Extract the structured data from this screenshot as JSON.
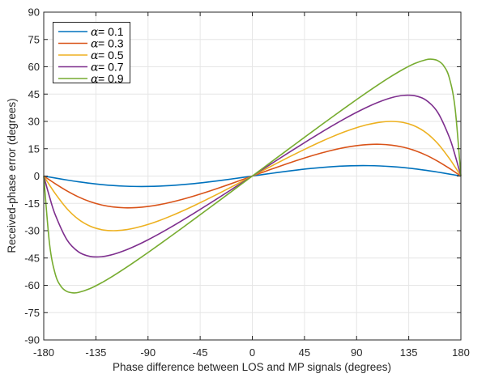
{
  "chart_data": {
    "type": "line",
    "title": "",
    "xlabel": "Phase difference between LOS and MP signals (degrees)",
    "ylabel": "Received-phase error (degrees)",
    "xlim": [
      -180,
      180
    ],
    "ylim": [
      -90,
      90
    ],
    "xticks": [
      "-180",
      "-135",
      "-90",
      "-45",
      "0",
      "45",
      "90",
      "135",
      "180"
    ],
    "yticks": [
      "90",
      "75",
      "60",
      "45",
      "30",
      "15",
      "0",
      "-15",
      "-30",
      "-45",
      "-60",
      "-75",
      "-90"
    ],
    "grid": true,
    "legend_position": "top-left",
    "series": [
      {
        "name": "α= 0.1",
        "symbol": "α",
        "label": "= 0.1",
        "color": "#0072BD",
        "x": [
          -180,
          -175,
          -170,
          -160,
          -150,
          -140,
          -130,
          -120,
          -110,
          -100,
          -90,
          -80,
          -70,
          -60,
          -50,
          -40,
          -30,
          -20,
          -10,
          0,
          10,
          20,
          30,
          40,
          50,
          60,
          70,
          80,
          90,
          100,
          110,
          120,
          130,
          140,
          150,
          160,
          170,
          175,
          180
        ],
        "y": [
          0,
          -0.55,
          -1.1,
          -2.16,
          -3.13,
          -3.98,
          -4.68,
          -5.21,
          -5.56,
          -5.72,
          -5.71,
          -5.53,
          -5.19,
          -4.71,
          -4.12,
          -3.42,
          -2.63,
          -1.79,
          -0.91,
          0,
          0.91,
          1.79,
          2.63,
          3.42,
          4.12,
          4.71,
          5.19,
          5.53,
          5.71,
          5.72,
          5.56,
          5.21,
          4.68,
          3.98,
          3.13,
          2.16,
          1.1,
          0.55,
          0
        ]
      },
      {
        "name": "α= 0.3",
        "symbol": "α",
        "label": "= 0.3",
        "color": "#D95319",
        "x": [
          -180,
          -175,
          -170,
          -160,
          -150,
          -140,
          -130,
          -120,
          -110,
          -100,
          -90,
          -80,
          -70,
          -60,
          -50,
          -40,
          -30,
          -20,
          -10,
          0,
          10,
          20,
          30,
          40,
          50,
          60,
          70,
          80,
          90,
          100,
          110,
          120,
          130,
          140,
          150,
          160,
          170,
          175,
          180
        ],
        "y": [
          0,
          -2.14,
          -4.23,
          -8.13,
          -11.46,
          -14.06,
          -15.89,
          -16.99,
          -17.44,
          -17.31,
          -16.7,
          -15.69,
          -14.34,
          -12.73,
          -10.9,
          -8.91,
          -6.79,
          -4.58,
          -2.3,
          0,
          2.3,
          4.58,
          6.79,
          8.91,
          10.9,
          12.73,
          14.34,
          15.69,
          16.7,
          17.31,
          17.44,
          16.99,
          15.89,
          14.06,
          11.46,
          8.13,
          4.23,
          2.14,
          0
        ]
      },
      {
        "name": "α= 0.5",
        "symbol": "α",
        "label": "= 0.5",
        "color": "#EDB120",
        "x": [
          -180,
          -175,
          -170,
          -160,
          -150,
          -140,
          -130,
          -120,
          -110,
          -100,
          -90,
          -80,
          -70,
          -60,
          -50,
          -40,
          -30,
          -20,
          -10,
          0,
          10,
          20,
          30,
          40,
          50,
          60,
          70,
          80,
          90,
          100,
          110,
          120,
          130,
          140,
          150,
          160,
          170,
          175,
          180
        ],
        "y": [
          0,
          -4.96,
          -9.7,
          -17.88,
          -23.79,
          -27.51,
          -29.44,
          -30.0,
          -29.54,
          -28.33,
          -26.57,
          -24.38,
          -21.86,
          -19.11,
          -16.16,
          -13.08,
          -9.9,
          -6.64,
          -3.33,
          0,
          3.33,
          6.64,
          9.9,
          13.08,
          16.16,
          19.11,
          21.86,
          24.38,
          26.57,
          28.33,
          29.54,
          30.0,
          29.44,
          27.51,
          23.79,
          17.88,
          9.7,
          4.96,
          0
        ]
      },
      {
        "name": "α= 0.7",
        "symbol": "α",
        "label": "= 0.7",
        "color": "#7E2F8E",
        "x": [
          -180,
          -175,
          -170,
          -160,
          -150,
          -140,
          -130,
          -120,
          -110,
          -100,
          -90,
          -80,
          -70,
          -60,
          -50,
          -40,
          -30,
          -20,
          -10,
          0,
          10,
          20,
          30,
          40,
          50,
          60,
          70,
          80,
          90,
          100,
          110,
          120,
          130,
          140,
          150,
          160,
          170,
          175,
          180
        ],
        "y": [
          0,
          -11.4,
          -21.37,
          -34.97,
          -41.63,
          -44.13,
          -44.27,
          -43.0,
          -40.85,
          -38.12,
          -34.99,
          -31.58,
          -27.96,
          -24.18,
          -20.29,
          -16.32,
          -12.29,
          -8.22,
          -4.11,
          0,
          4.11,
          8.22,
          12.29,
          16.32,
          20.29,
          24.18,
          27.96,
          31.58,
          34.99,
          38.12,
          40.85,
          43.0,
          44.27,
          44.13,
          41.63,
          34.97,
          21.37,
          11.4,
          0
        ]
      },
      {
        "name": "α= 0.9",
        "symbol": "α",
        "label": "= 0.9",
        "color": "#77AC30",
        "x": [
          -180,
          -175,
          -170,
          -165,
          -160,
          -155,
          -150,
          -140,
          -130,
          -120,
          -110,
          -100,
          -90,
          -80,
          -70,
          -60,
          -50,
          -40,
          -30,
          -20,
          -10,
          0,
          10,
          20,
          30,
          40,
          50,
          60,
          70,
          80,
          90,
          100,
          110,
          120,
          130,
          140,
          150,
          155,
          160,
          165,
          170,
          175,
          180
        ],
        "y": [
          0,
          -37.19,
          -53.96,
          -60.7,
          -63.38,
          -64.14,
          -63.88,
          -61.77,
          -58.56,
          -54.79,
          -50.7,
          -46.41,
          -41.99,
          -37.47,
          -32.9,
          -28.26,
          -23.59,
          -18.9,
          -14.19,
          -9.47,
          -4.73,
          0,
          4.73,
          9.47,
          14.19,
          18.9,
          23.59,
          28.26,
          32.9,
          37.47,
          41.99,
          46.41,
          50.7,
          54.79,
          58.56,
          61.77,
          63.88,
          64.14,
          63.38,
          60.7,
          53.96,
          37.19,
          0
        ]
      }
    ]
  }
}
